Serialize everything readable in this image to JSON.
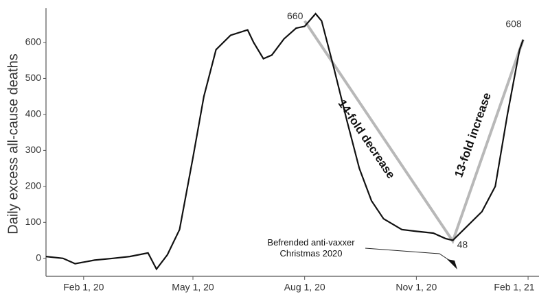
{
  "chart_data": {
    "type": "line",
    "y_label": "Daily excess all-cause deaths",
    "x": [
      "2020-01-01",
      "2020-01-15",
      "2020-01-25",
      "2020-02-10",
      "2020-02-25",
      "2020-03-10",
      "2020-03-25",
      "2020-04-01",
      "2020-04-10",
      "2020-04-20",
      "2020-05-01",
      "2020-05-10",
      "2020-05-20",
      "2020-06-01",
      "2020-06-15",
      "2020-06-20",
      "2020-06-28",
      "2020-07-05",
      "2020-07-15",
      "2020-07-25",
      "2020-08-01",
      "2020-08-10",
      "2020-08-15",
      "2020-08-25",
      "2020-09-05",
      "2020-09-15",
      "2020-09-25",
      "2020-10-05",
      "2020-10-20",
      "2020-11-01",
      "2020-11-15",
      "2020-11-25",
      "2020-12-01",
      "2020-12-10",
      "2020-12-25",
      "2021-01-05",
      "2021-01-15",
      "2021-01-25",
      "2021-01-28"
    ],
    "series": [
      {
        "name": "Daily excess all-cause deaths",
        "color": "#111111",
        "values": [
          5,
          0,
          -15,
          -5,
          0,
          5,
          15,
          -30,
          10,
          80,
          280,
          450,
          580,
          620,
          635,
          600,
          555,
          565,
          610,
          640,
          645,
          680,
          660,
          530,
          380,
          250,
          160,
          110,
          80,
          75,
          70,
          55,
          50,
          80,
          130,
          200,
          400,
          580,
          608
        ]
      }
    ],
    "trend": {
      "color": "#b8b8b8",
      "x": [
        "2020-08-01",
        "2020-12-01",
        "2021-01-28"
      ],
      "values": [
        660,
        48,
        608
      ]
    },
    "trend_labels": [
      "14-fold decrease",
      "13-fold increase"
    ],
    "annotation": "Befrended anti-vaxxer Christmas 2020",
    "xlim": [
      "2020-01-01",
      "2021-02-10"
    ],
    "xticks": [
      {
        "value": "2020-02-01",
        "label": "Feb 1, 20"
      },
      {
        "value": "2020-05-01",
        "label": "May 1, 20"
      },
      {
        "value": "2020-08-01",
        "label": "Aug 1, 20"
      },
      {
        "value": "2020-11-01",
        "label": "Nov 1, 20"
      },
      {
        "value": "2021-02-01",
        "label": "Feb 1, 21"
      }
    ],
    "ylim": [
      -50,
      700
    ],
    "yticks": [
      0,
      100,
      200,
      300,
      400,
      500,
      600
    ]
  }
}
